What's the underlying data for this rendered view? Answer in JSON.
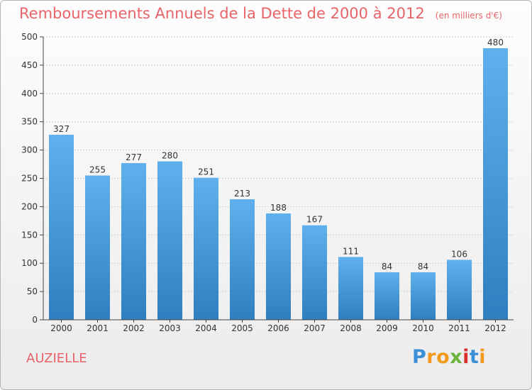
{
  "title": "Remboursements Annuels de la Dette de 2000 à 2012",
  "unit": "(en milliers d'€)",
  "commune": "AUZIELLE",
  "logo": {
    "letters": [
      "P",
      "r",
      "o",
      "x",
      "i",
      "t",
      "i"
    ],
    "colors": [
      "#3a8fd6",
      "#f29a1d",
      "#f29a1d",
      "#6bb43c",
      "#d9302e",
      "#3a8fd6",
      "#f29a1d"
    ]
  },
  "colors": {
    "title": "#e8636a",
    "bar": "#4aa0e2",
    "axis": "#444444",
    "grid": "#cfcfcf"
  },
  "chart_data": {
    "type": "bar",
    "categories": [
      "2000",
      "2001",
      "2002",
      "2003",
      "2004",
      "2005",
      "2006",
      "2007",
      "2008",
      "2009",
      "2010",
      "2011",
      "2012"
    ],
    "values": [
      327,
      255,
      277,
      280,
      251,
      213,
      188,
      167,
      111,
      84,
      84,
      106,
      480
    ],
    "ylim": [
      0,
      500
    ],
    "yticks": [
      0,
      50,
      100,
      150,
      200,
      250,
      300,
      350,
      400,
      450,
      500
    ],
    "grid": true
  }
}
